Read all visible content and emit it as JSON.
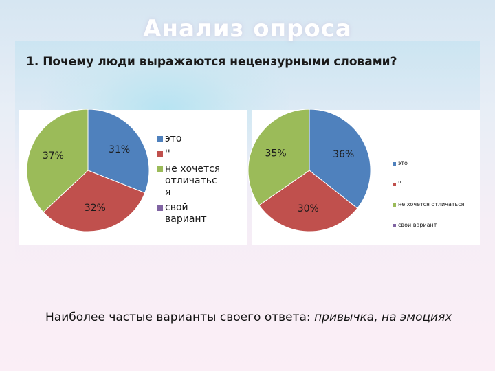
{
  "slide": {
    "title": "Анализ опроса",
    "question": "1. Почему люди выражаются нецензурными словами?",
    "note_prefix": "Наиболее частые варианты своего ответа: ",
    "note_italic": "привычка, на эмоциях"
  },
  "chart_data": [
    {
      "type": "pie",
      "categories": [
        "это",
        "''",
        "не хочется отличатьс я",
        "свой вариант"
      ],
      "values": [
        31,
        32,
        37,
        0
      ],
      "labels": [
        "31%",
        "32%",
        "37%",
        ""
      ],
      "colors": [
        "#4f81bd",
        "#c0504d",
        "#9bbb59",
        "#8064a2"
      ],
      "legend": "right",
      "legend_lines": [
        [
          "это"
        ],
        [
          "''"
        ],
        [
          "не хочется",
          "отличатьс",
          "я"
        ],
        [
          "свой",
          "вариант"
        ]
      ]
    },
    {
      "type": "pie",
      "categories": [
        "это",
        "''",
        "не хочется отличаться",
        "свой вариант"
      ],
      "values": [
        36,
        30,
        35,
        0
      ],
      "labels": [
        "36%",
        "30%",
        "35%",
        ""
      ],
      "colors": [
        "#4f81bd",
        "#c0504d",
        "#9bbb59",
        "#8064a2"
      ],
      "legend": "right",
      "legend_lines": [
        [
          "это"
        ],
        [
          "''"
        ],
        [
          "не хочется отличаться"
        ],
        [
          "свой вариант"
        ]
      ]
    }
  ]
}
